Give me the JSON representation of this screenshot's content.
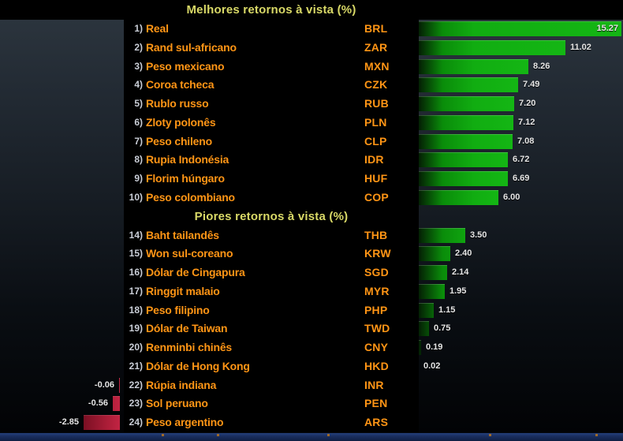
{
  "chart_data": {
    "type": "bar",
    "orientation": "horizontal",
    "value_unit": "%",
    "legend": "none",
    "sections": [
      {
        "title": "Melhores retornos à vista (%)",
        "rows": [
          {
            "rank": "1)",
            "name": "Real",
            "code": "BRL",
            "value": 15.27
          },
          {
            "rank": "2)",
            "name": "Rand sul-africano",
            "code": "ZAR",
            "value": 11.02
          },
          {
            "rank": "3)",
            "name": "Peso mexicano",
            "code": "MXN",
            "value": 8.26
          },
          {
            "rank": "4)",
            "name": "Coroa tcheca",
            "code": "CZK",
            "value": 7.49
          },
          {
            "rank": "5)",
            "name": "Rublo russo",
            "code": "RUB",
            "value": 7.2
          },
          {
            "rank": "6)",
            "name": "Zloty polonês",
            "code": "PLN",
            "value": 7.12
          },
          {
            "rank": "7)",
            "name": "Peso chileno",
            "code": "CLP",
            "value": 7.08
          },
          {
            "rank": "8)",
            "name": "Rupia Indonésia",
            "code": "IDR",
            "value": 6.72
          },
          {
            "rank": "9)",
            "name": "Florim húngaro",
            "code": "HUF",
            "value": 6.69
          },
          {
            "rank": "10)",
            "name": "Peso colombiano",
            "code": "COP",
            "value": 6.0
          }
        ]
      },
      {
        "title": "Piores retornos à vista (%)",
        "rows": [
          {
            "rank": "14)",
            "name": "Baht tailandês",
            "code": "THB",
            "value": 3.5
          },
          {
            "rank": "15)",
            "name": "Won sul-coreano",
            "code": "KRW",
            "value": 2.4
          },
          {
            "rank": "16)",
            "name": "Dólar de Cingapura",
            "code": "SGD",
            "value": 2.14
          },
          {
            "rank": "17)",
            "name": "Ringgit malaio",
            "code": "MYR",
            "value": 1.95
          },
          {
            "rank": "18)",
            "name": "Peso filipino",
            "code": "PHP",
            "value": 1.15
          },
          {
            "rank": "19)",
            "name": "Dólar de Taiwan",
            "code": "TWD",
            "value": 0.75
          },
          {
            "rank": "20)",
            "name": "Renminbi chinês",
            "code": "CNY",
            "value": 0.19
          },
          {
            "rank": "21)",
            "name": "Dólar de Hong Kong",
            "code": "HKD",
            "value": 0.02
          },
          {
            "rank": "22)",
            "name": "Rúpia indiana",
            "code": "INR",
            "value": -0.06
          },
          {
            "rank": "23)",
            "name": "Sol peruano",
            "code": "PEN",
            "value": -0.56
          },
          {
            "rank": "24)",
            "name": "Peso argentino",
            "code": "ARS",
            "value": -2.85
          }
        ]
      }
    ]
  },
  "colors": {
    "positive_bar": "#11ad11",
    "negative_bar": "#b01d38",
    "currency_text": "#ff9515",
    "rank_text": "#c9cdd6",
    "section_title_text": "#d9d967",
    "value_text": "#e6e6e6",
    "chart_panel_top": "#2b343d",
    "background": "#000000",
    "bottom_strip": "#1a2e5e"
  }
}
